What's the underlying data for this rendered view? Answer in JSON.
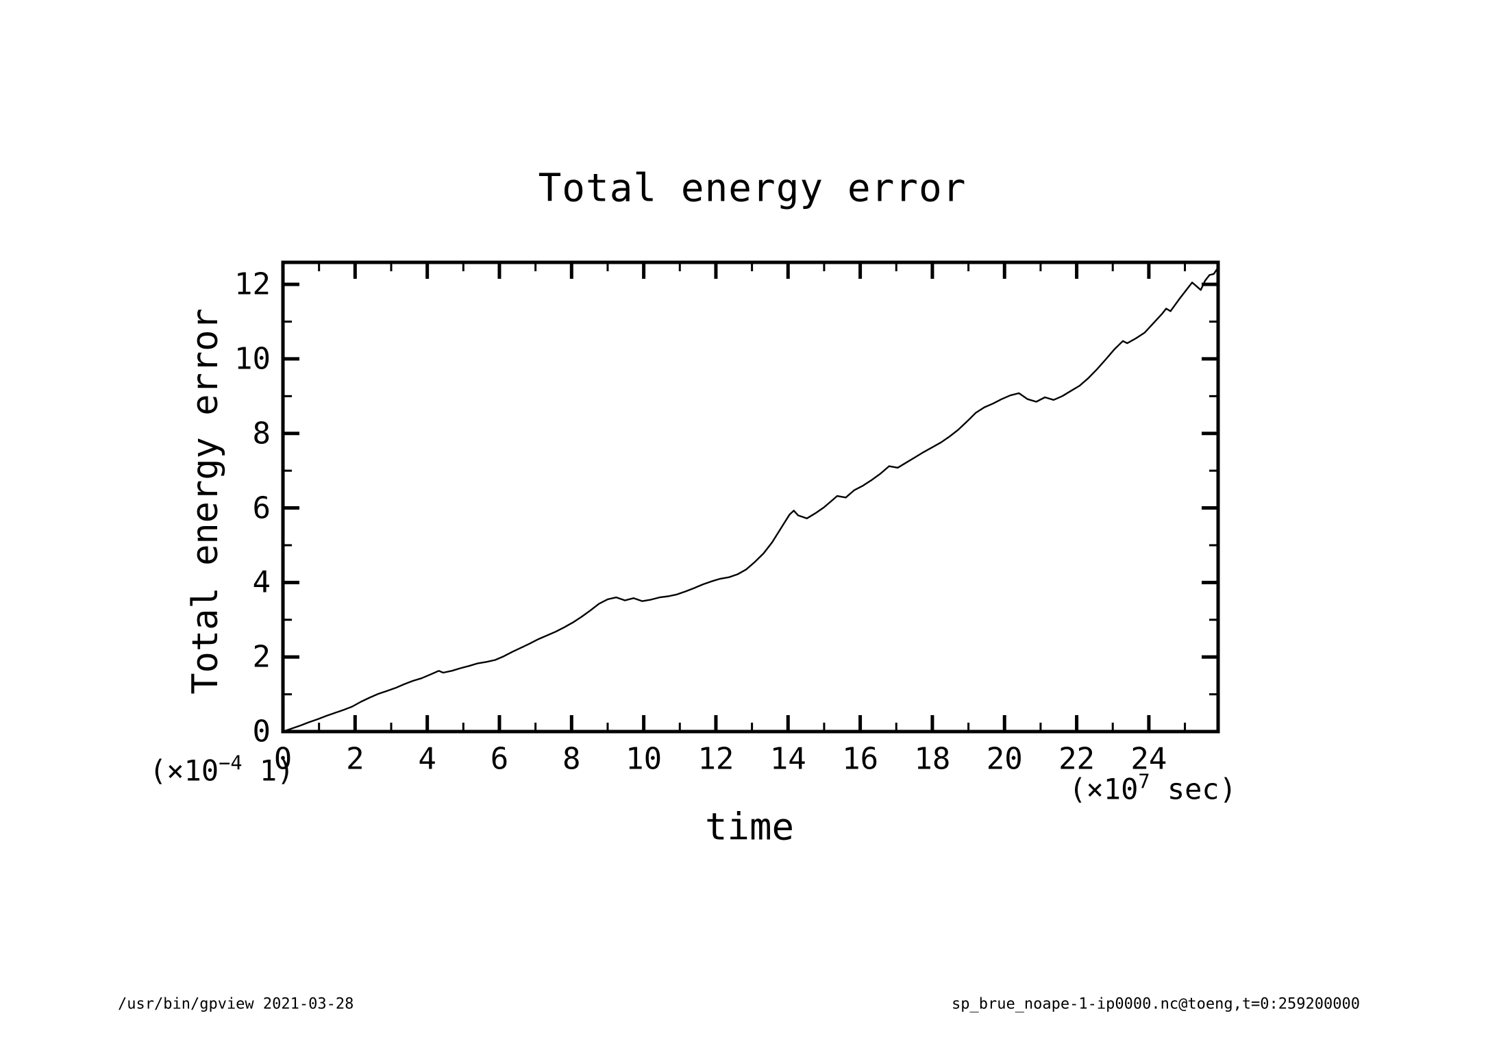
{
  "title": "Total energy error",
  "footer": {
    "left": "/usr/bin/gpview  2021-03-28",
    "right": "sp_brue_noape-1-ip0000.nc@toeng,t=0:259200000"
  },
  "chart_data": {
    "type": "line",
    "title": "Total energy error",
    "xlabel": "time",
    "ylabel": "Total energy error",
    "x_unit": {
      "prefix": "(×10",
      "exponent": "7",
      "suffix": " sec)"
    },
    "y_unit": {
      "prefix": "(×10",
      "exponent": "−4",
      "suffix": " 1)"
    },
    "xlim": [
      0,
      25.92
    ],
    "ylim": [
      0,
      12.59
    ],
    "x_major_ticks": [
      0,
      2,
      4,
      6,
      8,
      10,
      12,
      14,
      16,
      18,
      20,
      22,
      24
    ],
    "x_minor_ticks": [
      1,
      3,
      5,
      7,
      9,
      11,
      13,
      15,
      17,
      19,
      21,
      23,
      25
    ],
    "y_major_ticks": [
      0,
      2,
      4,
      6,
      8,
      10,
      12
    ],
    "y_minor_ticks": [
      1,
      3,
      5,
      7,
      9,
      11
    ],
    "grid": false,
    "legend": null,
    "line_color": "#000000",
    "background_color": "#ffffff",
    "series": [
      {
        "name": "Total energy error",
        "x": [
          0.0,
          0.24,
          0.48,
          0.72,
          0.96,
          1.2,
          1.44,
          1.68,
          1.92,
          2.16,
          2.4,
          2.64,
          2.88,
          3.12,
          3.36,
          3.6,
          3.84,
          4.08,
          4.32,
          4.44,
          4.68,
          4.92,
          5.16,
          5.4,
          5.64,
          5.88,
          6.12,
          6.36,
          6.6,
          6.84,
          7.08,
          7.32,
          7.56,
          7.8,
          8.04,
          8.28,
          8.52,
          8.76,
          9.0,
          9.24,
          9.48,
          9.72,
          9.96,
          10.2,
          10.44,
          10.68,
          10.92,
          11.16,
          11.4,
          11.64,
          11.88,
          12.12,
          12.36,
          12.6,
          12.84,
          13.08,
          13.32,
          13.56,
          13.8,
          14.04,
          14.16,
          14.28,
          14.52,
          14.76,
          15.0,
          15.24,
          15.36,
          15.6,
          15.84,
          16.08,
          16.32,
          16.56,
          16.8,
          17.04,
          17.28,
          17.52,
          17.76,
          18.0,
          18.24,
          18.48,
          18.72,
          18.96,
          19.2,
          19.44,
          19.68,
          19.92,
          20.16,
          20.4,
          20.64,
          20.88,
          21.12,
          21.36,
          21.6,
          21.84,
          22.08,
          22.32,
          22.56,
          22.8,
          23.04,
          23.28,
          23.4,
          23.64,
          23.88,
          24.12,
          24.36,
          24.48,
          24.6,
          24.84,
          25.08,
          25.2,
          25.32,
          25.44,
          25.56,
          25.68,
          25.8,
          25.92
        ],
        "y": [
          0.0,
          0.08,
          0.16,
          0.25,
          0.33,
          0.42,
          0.5,
          0.58,
          0.67,
          0.8,
          0.91,
          1.01,
          1.09,
          1.17,
          1.27,
          1.36,
          1.43,
          1.53,
          1.63,
          1.58,
          1.63,
          1.7,
          1.76,
          1.83,
          1.87,
          1.92,
          2.02,
          2.14,
          2.25,
          2.36,
          2.48,
          2.58,
          2.68,
          2.8,
          2.93,
          3.08,
          3.25,
          3.43,
          3.55,
          3.6,
          3.52,
          3.58,
          3.5,
          3.54,
          3.6,
          3.63,
          3.68,
          3.76,
          3.85,
          3.95,
          4.03,
          4.1,
          4.14,
          4.22,
          4.35,
          4.55,
          4.78,
          5.08,
          5.45,
          5.82,
          5.93,
          5.8,
          5.72,
          5.86,
          6.02,
          6.22,
          6.32,
          6.28,
          6.48,
          6.6,
          6.75,
          6.92,
          7.12,
          7.08,
          7.22,
          7.36,
          7.5,
          7.63,
          7.76,
          7.92,
          8.1,
          8.32,
          8.55,
          8.7,
          8.8,
          8.92,
          9.02,
          9.08,
          8.92,
          8.85,
          8.97,
          8.9,
          9.0,
          9.14,
          9.28,
          9.48,
          9.72,
          9.98,
          10.25,
          10.48,
          10.42,
          10.55,
          10.7,
          10.95,
          11.2,
          11.35,
          11.28,
          11.6,
          11.9,
          12.05,
          11.95,
          11.85,
          12.1,
          12.25,
          12.28,
          12.45
        ]
      }
    ]
  }
}
